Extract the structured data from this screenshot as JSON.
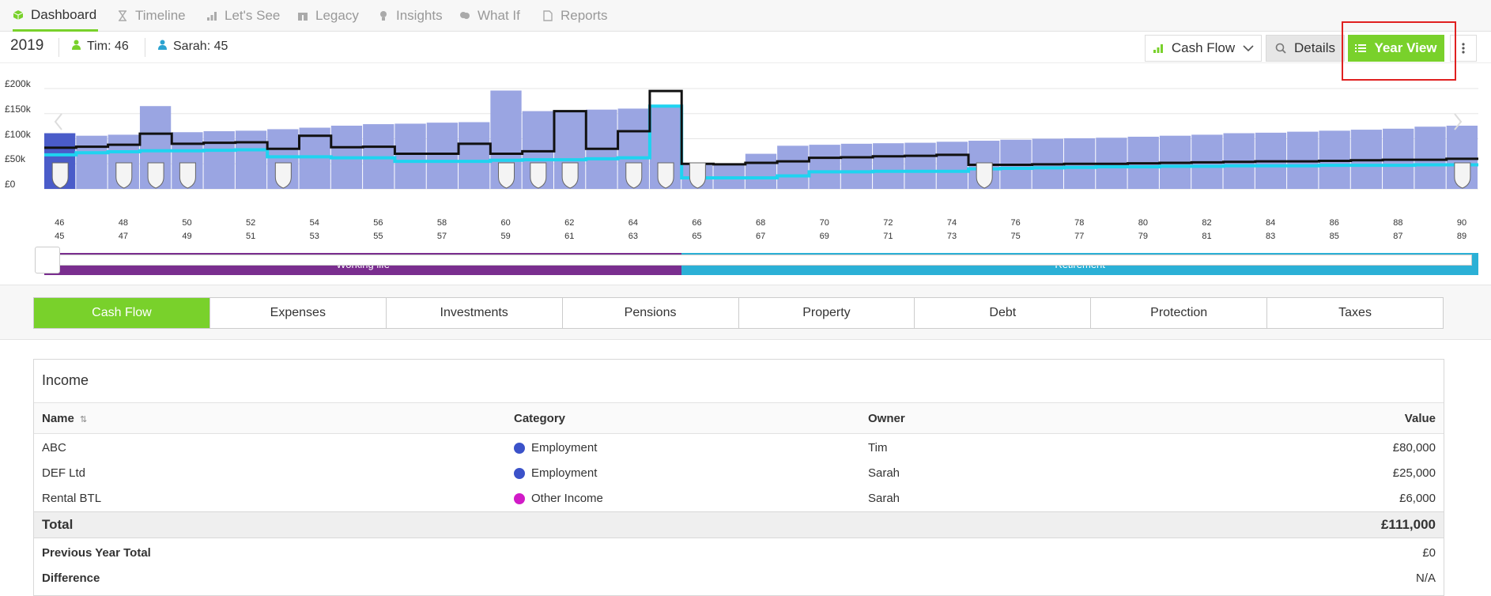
{
  "nav": {
    "items": [
      {
        "label": "Dashboard",
        "icon": "cube-icon"
      },
      {
        "label": "Timeline",
        "icon": "hourglass-icon"
      },
      {
        "label": "Let's See",
        "icon": "bar-chart-icon"
      },
      {
        "label": "Legacy",
        "icon": "gift-icon"
      },
      {
        "label": "Insights",
        "icon": "lightbulb-icon"
      },
      {
        "label": "What If",
        "icon": "brain-icon"
      },
      {
        "label": "Reports",
        "icon": "pdf-file-icon"
      }
    ]
  },
  "toolbar": {
    "year": "2019",
    "people": [
      {
        "name": "Tim",
        "age": "46",
        "color": "#79d12b"
      },
      {
        "name": "Sarah",
        "age": "45",
        "color": "#2ba3d1"
      }
    ],
    "view_select": "Cash Flow",
    "details_label": "Details",
    "year_view_label": "Year View"
  },
  "chart_data": {
    "type": "bar",
    "ylabels": [
      "£200k",
      "£150k",
      "£100k",
      "£50k",
      "£0"
    ],
    "ylim": [
      0,
      200000
    ],
    "ages_tim": [
      46,
      47,
      48,
      49,
      50,
      51,
      52,
      53,
      54,
      55,
      56,
      57,
      58,
      59,
      60,
      61,
      62,
      63,
      64,
      65,
      66,
      67,
      68,
      69,
      70,
      71,
      72,
      73,
      74,
      75,
      76,
      77,
      78,
      79,
      80,
      81,
      82,
      83,
      84,
      85,
      86,
      87,
      88,
      89,
      90
    ],
    "ages_sarah": [
      45,
      46,
      47,
      48,
      49,
      50,
      51,
      52,
      53,
      54,
      55,
      56,
      57,
      58,
      59,
      60,
      61,
      62,
      63,
      64,
      65,
      66,
      67,
      68,
      69,
      70,
      71,
      72,
      73,
      74,
      75,
      76,
      77,
      78,
      79,
      80,
      81,
      82,
      83,
      84,
      85,
      86,
      87,
      88,
      89
    ],
    "tick_labels_tim": [
      "46",
      "48",
      "50",
      "52",
      "54",
      "56",
      "58",
      "60",
      "62",
      "64",
      "66",
      "68",
      "70",
      "72",
      "74",
      "76",
      "78",
      "80",
      "82",
      "84",
      "86",
      "88",
      "90"
    ],
    "tick_labels_sarah": [
      "45",
      "47",
      "49",
      "51",
      "53",
      "55",
      "57",
      "59",
      "61",
      "63",
      "65",
      "67",
      "69",
      "71",
      "73",
      "75",
      "77",
      "79",
      "81",
      "83",
      "85",
      "87",
      "89"
    ],
    "series": [
      {
        "name": "Income",
        "type": "bar",
        "color": "#9aa5e2",
        "values": [
          111000,
          106000,
          108000,
          165000,
          113000,
          115000,
          116000,
          119000,
          122000,
          126000,
          129000,
          130000,
          132000,
          133000,
          196000,
          155000,
          157000,
          158000,
          160000,
          164000,
          49000,
          50000,
          70000,
          86000,
          88000,
          90000,
          91000,
          92000,
          94000,
          96000,
          98000,
          100000,
          101000,
          102000,
          104000,
          106000,
          108000,
          111000,
          112000,
          114000,
          116000,
          118000,
          120000,
          124000,
          126000
        ]
      },
      {
        "name": "Expenditure",
        "type": "step",
        "color": "#111111",
        "values": [
          82000,
          84000,
          88000,
          110000,
          90000,
          92000,
          93000,
          80000,
          106000,
          83000,
          84000,
          70000,
          70000,
          90000,
          70000,
          75000,
          155000,
          80000,
          115000,
          195000,
          50000,
          49000,
          52000,
          55000,
          62000,
          63000,
          65000,
          66000,
          68000,
          48000,
          48000,
          49000,
          50000,
          50000,
          51000,
          52000,
          53000,
          54000,
          55000,
          55000,
          56000,
          57000,
          58000,
          58000,
          60000
        ]
      },
      {
        "name": "Net",
        "type": "step",
        "color": "#1fd3f0",
        "values": [
          68000,
          72000,
          74000,
          76000,
          76000,
          77000,
          78000,
          64000,
          64000,
          62000,
          62000,
          55000,
          55000,
          55000,
          57000,
          58000,
          58000,
          60000,
          62000,
          165000,
          22000,
          22000,
          22000,
          26000,
          34000,
          34000,
          35000,
          35000,
          35000,
          40000,
          41000,
          42000,
          43000,
          44000,
          44000,
          45000,
          45000,
          46000,
          46000,
          46000,
          47000,
          47000,
          47000,
          48000,
          48000
        ]
      }
    ],
    "event_markers_at_ages_tim": [
      46,
      48,
      49,
      50,
      53,
      60,
      61,
      62,
      64,
      65,
      66,
      75,
      90
    ],
    "phases": [
      {
        "label": "Working life",
        "color": "#7a2e8f",
        "from_age_tim": 46,
        "to_age_tim": 66
      },
      {
        "label": "Retirement",
        "color": "#2bb0d6",
        "from_age_tim": 66,
        "to_age_tim": 90
      }
    ]
  },
  "tabs": [
    {
      "label": "Cash Flow",
      "active": true
    },
    {
      "label": "Expenses",
      "active": false
    },
    {
      "label": "Investments",
      "active": false
    },
    {
      "label": "Pensions",
      "active": false
    },
    {
      "label": "Property",
      "active": false
    },
    {
      "label": "Debt",
      "active": false
    },
    {
      "label": "Protection",
      "active": false
    },
    {
      "label": "Taxes",
      "active": false
    }
  ],
  "income": {
    "title": "Income",
    "columns": {
      "name": "Name",
      "category": "Category",
      "owner": "Owner",
      "value": "Value"
    },
    "sort_icon": "⇅",
    "rows": [
      {
        "name": "ABC",
        "category": "Employment",
        "category_color": "#3b52c9",
        "owner": "Tim",
        "value": "£80,000"
      },
      {
        "name": "DEF Ltd",
        "category": "Employment",
        "category_color": "#3b52c9",
        "owner": "Sarah",
        "value": "£25,000"
      },
      {
        "name": "Rental BTL",
        "category": "Other Income",
        "category_color": "#d11bc7",
        "owner": "Sarah",
        "value": "£6,000"
      }
    ],
    "total_label": "Total",
    "total_value": "£111,000",
    "prev_label": "Previous Year Total",
    "prev_value": "£0",
    "diff_label": "Difference",
    "diff_value": "N/A"
  }
}
